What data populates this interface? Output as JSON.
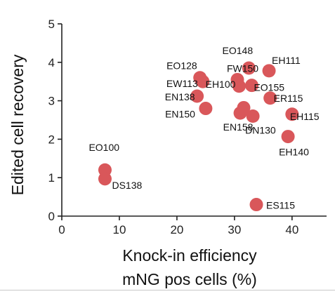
{
  "chart_data": {
    "type": "scatter",
    "title": "",
    "xlabel": [
      "Knock-in efficiency",
      "mNG pos cells (%)"
    ],
    "ylabel": "Edited cell recovery",
    "xlim": [
      0,
      46
    ],
    "ylim": [
      0,
      5
    ],
    "xticks": [
      0,
      10,
      20,
      30,
      40
    ],
    "yticks": [
      0,
      1,
      2,
      3,
      4,
      5
    ],
    "grid": false,
    "marker_color": "#d9575a",
    "points": [
      {
        "label": "EO100",
        "x": 7.5,
        "y": 1.2
      },
      {
        "label": "DS138",
        "x": 7.5,
        "y": 0.97
      },
      {
        "label": "EO128",
        "x": 24.0,
        "y": 3.6
      },
      {
        "label": "EW113",
        "x": 24.5,
        "y": 3.5
      },
      {
        "label": "EN138",
        "x": 23.5,
        "y": 3.12
      },
      {
        "label": "EN150",
        "x": 25.0,
        "y": 2.8
      },
      {
        "label": "FW150",
        "x": 30.5,
        "y": 3.55
      },
      {
        "label": "EH100",
        "x": 30.8,
        "y": 3.38
      },
      {
        "label": "EO148",
        "x": 32.5,
        "y": 3.85
      },
      {
        "label": "EO155",
        "x": 33.0,
        "y": 3.4
      },
      {
        "label": "EH111",
        "x": 36.0,
        "y": 3.78
      },
      {
        "label": "ER115",
        "x": 36.2,
        "y": 3.07
      },
      {
        "label": "EN158",
        "x": 31.0,
        "y": 2.68
      },
      {
        "label": "",
        "x": 31.6,
        "y": 2.82
      },
      {
        "label": "DN130",
        "x": 33.2,
        "y": 2.6
      },
      {
        "label": "EH115",
        "x": 40.0,
        "y": 2.65
      },
      {
        "label": "EH140",
        "x": 39.3,
        "y": 2.07
      },
      {
        "label": "ES115",
        "x": 33.8,
        "y": 0.3
      }
    ]
  }
}
